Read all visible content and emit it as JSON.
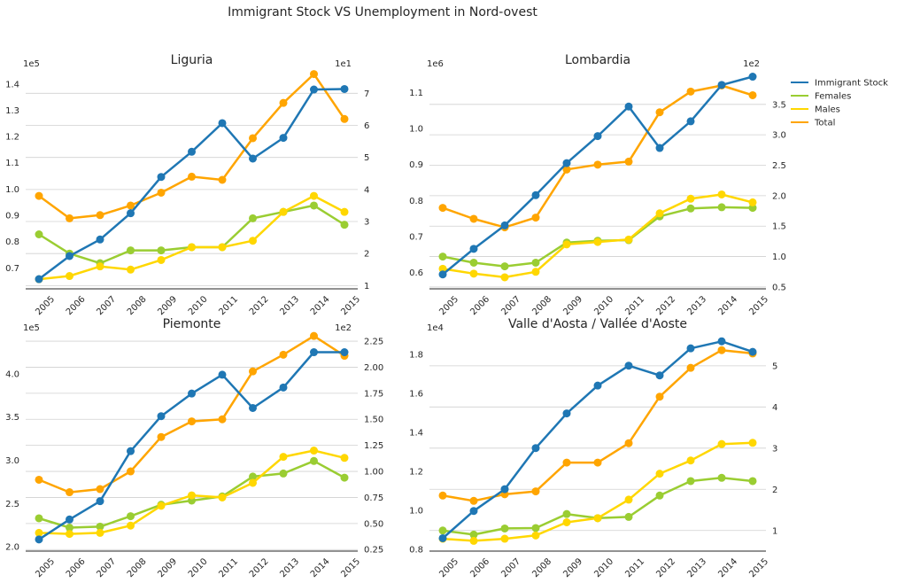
{
  "chart_data": {
    "title": "Immigrant Stock VS Unemployment in Nord-ovest",
    "type": "line",
    "legend": {
      "placement": "right",
      "entries": [
        "Immigrant Stock",
        "Females",
        "Males",
        "Total"
      ]
    },
    "colors": {
      "Immigrant Stock": "#1f77b4",
      "Females": "#9acd32",
      "Males": "#ffd700",
      "Total": "#ffa500"
    },
    "grid": "horizontal, right axis",
    "panels": [
      {
        "title": "Liguria",
        "x": [
          2005,
          2006,
          2007,
          2008,
          2009,
          2010,
          2011,
          2012,
          2013,
          2014,
          2015
        ],
        "left_axis": {
          "multiplier": "1e5",
          "range": [
            0.62,
            1.45
          ],
          "ticks": [
            "0.7",
            "0.8",
            "0.9",
            "1.0",
            "1.1",
            "1.2",
            "1.3",
            "1.4"
          ],
          "tick_values": [
            0.7,
            0.8,
            0.9,
            1.0,
            1.1,
            1.2,
            1.3,
            1.4
          ]
        },
        "right_axis": {
          "multiplier": "1e1",
          "range": [
            0.9,
            7.7
          ],
          "ticks": [
            "1",
            "2",
            "3",
            "4",
            "5",
            "6",
            "7"
          ],
          "tick_values": [
            1,
            2,
            3,
            4,
            5,
            6,
            7
          ]
        },
        "series": [
          {
            "name": "Immigrant Stock",
            "axis": "left",
            "values": [
              0.657,
              0.745,
              0.808,
              0.908,
              1.046,
              1.142,
              1.251,
              1.116,
              1.195,
              1.379,
              1.381
            ]
          },
          {
            "name": "Females",
            "axis": "right",
            "values": [
              2.6,
              2.0,
              1.7,
              2.1,
              2.1,
              2.2,
              2.2,
              3.1,
              3.3,
              3.5,
              2.9
            ]
          },
          {
            "name": "Males",
            "axis": "right",
            "values": [
              1.2,
              1.3,
              1.6,
              1.5,
              1.8,
              2.2,
              2.2,
              2.4,
              3.3,
              3.8,
              3.3
            ]
          },
          {
            "name": "Total",
            "axis": "right",
            "values": [
              3.8,
              3.1,
              3.2,
              3.5,
              3.9,
              4.4,
              4.3,
              5.6,
              6.7,
              7.6,
              6.2
            ]
          }
        ]
      },
      {
        "title": "Lombardia",
        "x": [
          2005,
          2006,
          2007,
          2008,
          2009,
          2010,
          2011,
          2012,
          2013,
          2014,
          2015
        ],
        "left_axis": {
          "multiplier": "1e6",
          "range": [
            0.555,
            1.16
          ],
          "ticks": [
            "0.6",
            "0.7",
            "0.8",
            "0.9",
            "1.0",
            "1.1"
          ],
          "tick_values": [
            0.6,
            0.7,
            0.8,
            0.9,
            1.0,
            1.1
          ]
        },
        "right_axis": {
          "multiplier": "1e2",
          "range": [
            0.47,
            4.05
          ],
          "ticks": [
            "0.5",
            "1.0",
            "1.5",
            "2.0",
            "2.5",
            "3.0",
            "3.5"
          ],
          "tick_values": [
            0.5,
            1.0,
            1.5,
            2.0,
            2.5,
            3.0,
            3.5
          ]
        },
        "series": [
          {
            "name": "Immigrant Stock",
            "axis": "left",
            "values": [
              0.595,
              0.666,
              0.731,
              0.815,
              0.904,
              0.979,
              1.061,
              0.946,
              1.02,
              1.121,
              1.144
            ]
          },
          {
            "name": "Females",
            "axis": "right",
            "values": [
              1.0,
              0.9,
              0.84,
              0.9,
              1.23,
              1.26,
              1.27,
              1.66,
              1.79,
              1.81,
              1.8
            ]
          },
          {
            "name": "Males",
            "axis": "right",
            "values": [
              0.8,
              0.72,
              0.66,
              0.75,
              1.2,
              1.24,
              1.28,
              1.71,
              1.95,
              2.02,
              1.89
            ]
          },
          {
            "name": "Total",
            "axis": "right",
            "values": [
              1.8,
              1.62,
              1.48,
              1.64,
              2.43,
              2.51,
              2.56,
              3.37,
              3.71,
              3.81,
              3.65
            ]
          }
        ]
      },
      {
        "title": "Piemonte",
        "x": [
          2005,
          2006,
          2007,
          2008,
          2009,
          2010,
          2011,
          2012,
          2013,
          2014,
          2015
        ],
        "left_axis": {
          "multiplier": "1e5",
          "range": [
            1.95,
            4.45
          ],
          "ticks": [
            "2.0",
            "2.5",
            "3.0",
            "3.5",
            "4.0"
          ],
          "tick_values": [
            2.0,
            2.5,
            3.0,
            3.5,
            4.0
          ]
        },
        "right_axis": {
          "multiplier": "1e2",
          "range": [
            0.235,
            2.31
          ],
          "ticks": [
            "0.25",
            "0.50",
            "0.75",
            "1.00",
            "1.25",
            "1.50",
            "1.75",
            "2.00",
            "2.25"
          ],
          "tick_values": [
            0.25,
            0.5,
            0.75,
            1.0,
            1.25,
            1.5,
            1.75,
            2.0,
            2.25
          ]
        },
        "series": [
          {
            "name": "Immigrant Stock",
            "axis": "left",
            "values": [
              2.085,
              2.316,
              2.527,
              3.106,
              3.51,
              3.772,
              3.99,
              3.605,
              3.842,
              4.25,
              4.25
            ]
          },
          {
            "name": "Females",
            "axis": "right",
            "values": [
              0.55,
              0.46,
              0.47,
              0.57,
              0.68,
              0.72,
              0.76,
              0.95,
              0.98,
              1.1,
              0.94
            ]
          },
          {
            "name": "Males",
            "axis": "right",
            "values": [
              0.41,
              0.4,
              0.41,
              0.48,
              0.67,
              0.77,
              0.75,
              0.89,
              1.14,
              1.2,
              1.13
            ]
          },
          {
            "name": "Total",
            "axis": "right",
            "values": [
              0.92,
              0.8,
              0.83,
              1.0,
              1.33,
              1.48,
              1.5,
              1.96,
              2.12,
              2.3,
              2.11
            ]
          }
        ]
      },
      {
        "title": "Valle d'Aosta / Vallée d'Aoste",
        "x": [
          2005,
          2006,
          2007,
          2008,
          2009,
          2010,
          2011,
          2012,
          2013,
          2014,
          2015
        ],
        "left_axis": {
          "multiplier": "1e4",
          "range": [
            0.79,
            1.9
          ],
          "ticks": [
            "0.8",
            "1.0",
            "1.2",
            "1.4",
            "1.6",
            "1.8"
          ],
          "tick_values": [
            0.8,
            1.0,
            1.2,
            1.4,
            1.6,
            1.8
          ]
        },
        "right_axis": {
          "multiplier": "",
          "range": [
            0.5,
            5.75
          ],
          "ticks": [
            "1",
            "2",
            "3",
            "4",
            "5"
          ],
          "tick_values": [
            1,
            2,
            3,
            4,
            5
          ]
        },
        "series": [
          {
            "name": "Immigrant Stock",
            "axis": "left",
            "values": [
              0.856,
              0.996,
              1.108,
              1.319,
              1.497,
              1.64,
              1.742,
              1.692,
              1.831,
              1.867,
              1.813
            ]
          },
          {
            "name": "Females",
            "axis": "right",
            "values": [
              1.0,
              0.9,
              1.05,
              1.06,
              1.4,
              1.3,
              1.33,
              1.85,
              2.2,
              2.28,
              2.2
            ]
          },
          {
            "name": "Males",
            "axis": "right",
            "values": [
              0.8,
              0.75,
              0.8,
              0.88,
              1.2,
              1.3,
              1.75,
              2.38,
              2.7,
              3.1,
              3.13
            ]
          },
          {
            "name": "Total",
            "axis": "right",
            "values": [
              1.85,
              1.72,
              1.88,
              1.95,
              2.65,
              2.65,
              3.12,
              4.25,
              4.95,
              5.38,
              5.3
            ]
          }
        ]
      }
    ]
  }
}
